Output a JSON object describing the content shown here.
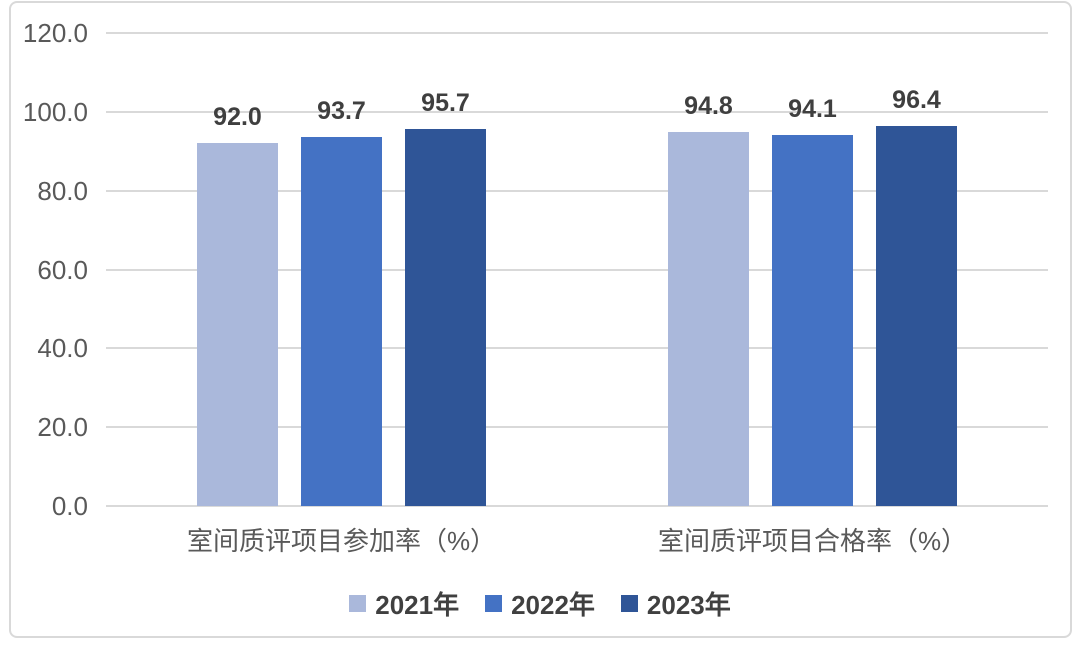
{
  "chart_data": {
    "type": "bar",
    "title": "",
    "xlabel": "",
    "ylabel": "",
    "categories": [
      "室间质评项目参加率（%）",
      "室间质评项目合格率（%）"
    ],
    "series": [
      {
        "name": "2021年",
        "color": "#aab8db",
        "values": [
          92.0,
          94.8
        ],
        "value_labels": [
          "92.0",
          "94.8"
        ]
      },
      {
        "name": "2022年",
        "color": "#4472c4",
        "values": [
          93.7,
          94.1
        ],
        "value_labels": [
          "93.7",
          "94.1"
        ]
      },
      {
        "name": "2023年",
        "color": "#2f5597",
        "values": [
          95.7,
          96.4
        ],
        "value_labels": [
          "95.7",
          "96.4"
        ]
      }
    ],
    "y_axis": {
      "min": 0,
      "max": 120,
      "step": 20,
      "tick_labels": [
        "0.0",
        "20.0",
        "40.0",
        "60.0",
        "80.0",
        "100.0",
        "120.0"
      ]
    },
    "grid": true,
    "legend_position": "bottom"
  },
  "colors": {
    "background": "#ffffff",
    "frame_border": "#d9d9d9",
    "gridline": "#d9d9d9",
    "axis_text": "#595959",
    "value_text": "#3f3f3f",
    "legend_text": "#404040"
  }
}
